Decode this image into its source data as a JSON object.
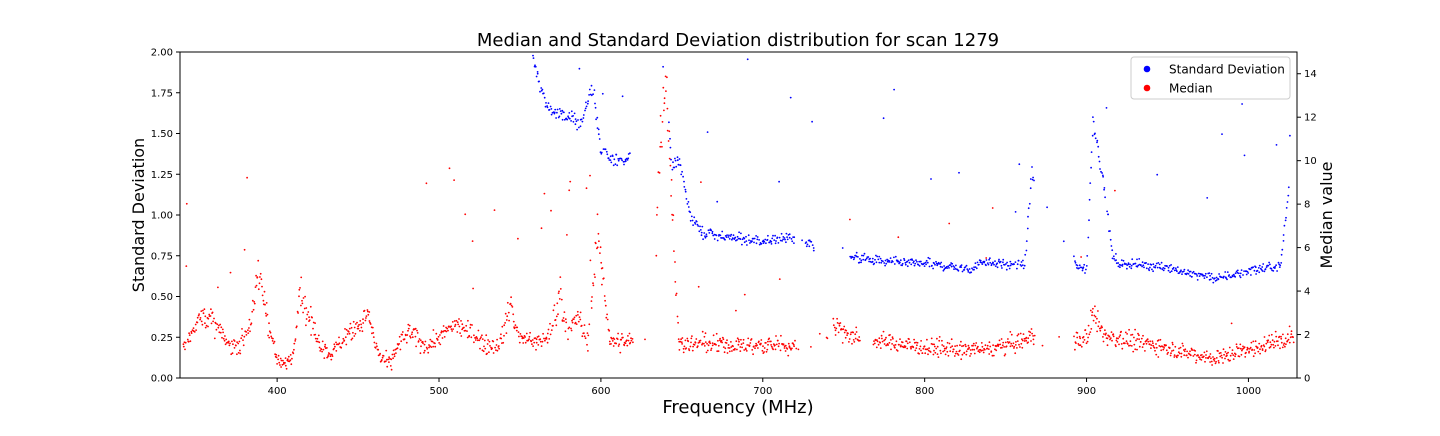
{
  "chart_data": {
    "type": "scatter",
    "title": "Median and Standard Deviation distribution for scan 1279",
    "xlabel": "Frequency (MHz)",
    "ylabel_left": "Standard Deviation",
    "ylabel_right": "Median value",
    "xlim": [
      340,
      1030
    ],
    "ylim_left": [
      0,
      2.0
    ],
    "ylim_right": [
      0,
      15
    ],
    "x_ticks": [
      400,
      500,
      600,
      700,
      800,
      900,
      1000
    ],
    "y_left_ticks": [
      "0.00",
      "0.25",
      "0.50",
      "0.75",
      "1.00",
      "1.25",
      "1.50",
      "1.75",
      "2.00"
    ],
    "y_right_ticks": [
      0,
      2,
      4,
      6,
      8,
      10,
      12,
      14
    ],
    "grid": false,
    "legend_position": "top-right",
    "series": [
      {
        "name": "Standard Deviation",
        "color": "#0000ff",
        "axis": "left",
        "trend": [
          [
            558,
            1.95
          ],
          [
            566,
            1.68
          ],
          [
            572,
            1.62
          ],
          [
            588,
            1.57
          ],
          [
            595,
            1.8
          ],
          [
            600,
            1.38
          ],
          [
            604,
            1.36
          ],
          [
            608,
            1.33
          ],
          [
            612,
            1.35
          ],
          [
            616,
            1.33
          ],
          [
            628,
            1.68
          ],
          [
            640,
            1.92
          ],
          [
            644,
            1.27
          ],
          [
            648,
            1.35
          ],
          [
            652,
            1.15
          ],
          [
            656,
            0.98
          ],
          [
            660,
            0.93
          ],
          [
            664,
            0.88
          ],
          [
            668,
            0.9
          ],
          [
            672,
            0.87
          ],
          [
            680,
            0.86
          ],
          [
            690,
            0.85
          ],
          [
            700,
            0.84
          ],
          [
            708,
            0.85
          ],
          [
            716,
            0.86
          ],
          [
            728,
            0.83
          ],
          [
            756,
            0.74
          ],
          [
            770,
            0.72
          ],
          [
            780,
            0.71
          ],
          [
            790,
            0.7
          ],
          [
            800,
            0.7
          ],
          [
            810,
            0.69
          ],
          [
            820,
            0.68
          ],
          [
            828,
            0.66
          ],
          [
            836,
            0.72
          ],
          [
            848,
            0.7
          ],
          [
            856,
            0.69
          ],
          [
            862,
            0.7
          ],
          [
            866,
            1.25
          ],
          [
            894,
            0.68
          ],
          [
            900,
            0.67
          ],
          [
            904,
            1.6
          ],
          [
            908,
            1.35
          ],
          [
            912,
            1.1
          ],
          [
            916,
            0.75
          ],
          [
            920,
            0.7
          ],
          [
            930,
            0.7
          ],
          [
            940,
            0.69
          ],
          [
            950,
            0.68
          ],
          [
            960,
            0.65
          ],
          [
            970,
            0.63
          ],
          [
            980,
            0.61
          ],
          [
            990,
            0.63
          ],
          [
            1000,
            0.66
          ],
          [
            1010,
            0.67
          ],
          [
            1020,
            0.69
          ],
          [
            1026,
            1.25
          ]
        ]
      },
      {
        "name": "Median",
        "color": "#ff0000",
        "axis": "left",
        "trend": [
          [
            342,
            0.2
          ],
          [
            348,
            0.3
          ],
          [
            355,
            0.4
          ],
          [
            362,
            0.32
          ],
          [
            370,
            0.2
          ],
          [
            378,
            0.22
          ],
          [
            384,
            0.35
          ],
          [
            388,
            0.62
          ],
          [
            391,
            0.55
          ],
          [
            395,
            0.32
          ],
          [
            400,
            0.1
          ],
          [
            406,
            0.09
          ],
          [
            410,
            0.14
          ],
          [
            414,
            0.55
          ],
          [
            418,
            0.4
          ],
          [
            422,
            0.3
          ],
          [
            428,
            0.18
          ],
          [
            434,
            0.14
          ],
          [
            440,
            0.24
          ],
          [
            446,
            0.3
          ],
          [
            452,
            0.33
          ],
          [
            456,
            0.4
          ],
          [
            460,
            0.22
          ],
          [
            464,
            0.12
          ],
          [
            470,
            0.09
          ],
          [
            476,
            0.22
          ],
          [
            482,
            0.28
          ],
          [
            488,
            0.22
          ],
          [
            494,
            0.2
          ],
          [
            500,
            0.25
          ],
          [
            506,
            0.3
          ],
          [
            512,
            0.33
          ],
          [
            518,
            0.28
          ],
          [
            524,
            0.25
          ],
          [
            530,
            0.2
          ],
          [
            538,
            0.22
          ],
          [
            544,
            0.45
          ],
          [
            550,
            0.24
          ],
          [
            560,
            0.22
          ],
          [
            568,
            0.26
          ],
          [
            574,
            0.5
          ],
          [
            580,
            0.28
          ],
          [
            586,
            0.38
          ],
          [
            592,
            0.22
          ],
          [
            598,
            0.88
          ],
          [
            602,
            0.55
          ],
          [
            606,
            0.22
          ],
          [
            612,
            0.22
          ],
          [
            620,
            0.22
          ],
          [
            632,
            0.22
          ],
          [
            636,
            1.35
          ],
          [
            640,
            1.95
          ],
          [
            648,
            0.21
          ],
          [
            660,
            0.21
          ],
          [
            680,
            0.2
          ],
          [
            700,
            0.2
          ],
          [
            716,
            0.2
          ],
          [
            728,
            0.19
          ],
          [
            746,
            0.32
          ],
          [
            756,
            0.25
          ],
          [
            770,
            0.23
          ],
          [
            780,
            0.22
          ],
          [
            790,
            0.2
          ],
          [
            800,
            0.19
          ],
          [
            810,
            0.18
          ],
          [
            820,
            0.17
          ],
          [
            830,
            0.17
          ],
          [
            840,
            0.18
          ],
          [
            850,
            0.2
          ],
          [
            860,
            0.23
          ],
          [
            866,
            0.25
          ],
          [
            894,
            0.24
          ],
          [
            900,
            0.25
          ],
          [
            904,
            0.4
          ],
          [
            908,
            0.3
          ],
          [
            912,
            0.26
          ],
          [
            920,
            0.24
          ],
          [
            930,
            0.22
          ],
          [
            940,
            0.21
          ],
          [
            950,
            0.19
          ],
          [
            960,
            0.16
          ],
          [
            970,
            0.14
          ],
          [
            980,
            0.12
          ],
          [
            990,
            0.15
          ],
          [
            1000,
            0.18
          ],
          [
            1010,
            0.2
          ],
          [
            1020,
            0.23
          ],
          [
            1028,
            0.25
          ]
        ]
      }
    ]
  }
}
